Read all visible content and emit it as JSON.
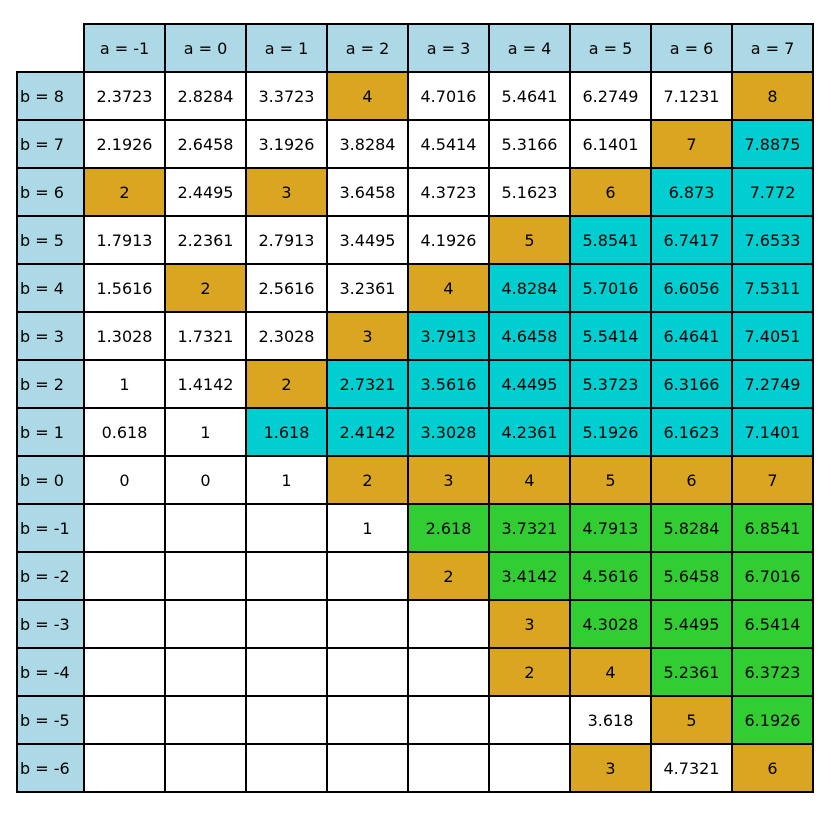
{
  "chart_data": {
    "type": "table",
    "columns": [
      "a = -1",
      "a = 0",
      "a = 1",
      "a = 2",
      "a = 3",
      "a = 4",
      "a = 5",
      "a = 6",
      "a = 7"
    ],
    "rows": [
      {
        "label": "b = 8",
        "cells": [
          "2.3723",
          "2.8284",
          "3.3723",
          "4",
          "4.7016",
          "5.4641",
          "6.2749",
          "7.1231",
          "8"
        ],
        "fills": [
          "w",
          "w",
          "w",
          "o",
          "w",
          "w",
          "w",
          "w",
          "o"
        ]
      },
      {
        "label": "b = 7",
        "cells": [
          "2.1926",
          "2.6458",
          "3.1926",
          "3.8284",
          "4.5414",
          "5.3166",
          "6.1401",
          "7",
          "7.8875"
        ],
        "fills": [
          "w",
          "w",
          "w",
          "w",
          "w",
          "w",
          "w",
          "o",
          "c"
        ]
      },
      {
        "label": "b = 6",
        "cells": [
          "2",
          "2.4495",
          "3",
          "3.6458",
          "4.3723",
          "5.1623",
          "6",
          "6.873",
          "7.772"
        ],
        "fills": [
          "o",
          "w",
          "o",
          "w",
          "w",
          "w",
          "o",
          "c",
          "c"
        ]
      },
      {
        "label": "b = 5",
        "cells": [
          "1.7913",
          "2.2361",
          "2.7913",
          "3.4495",
          "4.1926",
          "5",
          "5.8541",
          "6.7417",
          "7.6533"
        ],
        "fills": [
          "w",
          "w",
          "w",
          "w",
          "w",
          "o",
          "c",
          "c",
          "c"
        ]
      },
      {
        "label": "b = 4",
        "cells": [
          "1.5616",
          "2",
          "2.5616",
          "3.2361",
          "4",
          "4.8284",
          "5.7016",
          "6.6056",
          "7.5311"
        ],
        "fills": [
          "w",
          "o",
          "w",
          "w",
          "o",
          "c",
          "c",
          "c",
          "c"
        ]
      },
      {
        "label": "b = 3",
        "cells": [
          "1.3028",
          "1.7321",
          "2.3028",
          "3",
          "3.7913",
          "4.6458",
          "5.5414",
          "6.4641",
          "7.4051"
        ],
        "fills": [
          "w",
          "w",
          "w",
          "o",
          "c",
          "c",
          "c",
          "c",
          "c"
        ]
      },
      {
        "label": "b = 2",
        "cells": [
          "1",
          "1.4142",
          "2",
          "2.7321",
          "3.5616",
          "4.4495",
          "5.3723",
          "6.3166",
          "7.2749"
        ],
        "fills": [
          "w",
          "w",
          "o",
          "c",
          "c",
          "c",
          "c",
          "c",
          "c"
        ]
      },
      {
        "label": "b = 1",
        "cells": [
          "0.618",
          "1",
          "1.618",
          "2.4142",
          "3.3028",
          "4.2361",
          "5.1926",
          "6.1623",
          "7.1401"
        ],
        "fills": [
          "w",
          "w",
          "c",
          "c",
          "c",
          "c",
          "c",
          "c",
          "c"
        ]
      },
      {
        "label": "b = 0",
        "cells": [
          "0",
          "0",
          "1",
          "2",
          "3",
          "4",
          "5",
          "6",
          "7"
        ],
        "fills": [
          "w",
          "w",
          "w",
          "o",
          "o",
          "o",
          "o",
          "o",
          "o"
        ]
      },
      {
        "label": "b = -1",
        "cells": [
          "",
          "",
          "",
          "1",
          "2.618",
          "3.7321",
          "4.7913",
          "5.8284",
          "6.8541"
        ],
        "fills": [
          "w",
          "w",
          "w",
          "w",
          "g",
          "g",
          "g",
          "g",
          "g"
        ]
      },
      {
        "label": "b = -2",
        "cells": [
          "",
          "",
          "",
          "",
          "2",
          "3.4142",
          "4.5616",
          "5.6458",
          "6.7016"
        ],
        "fills": [
          "w",
          "w",
          "w",
          "w",
          "o",
          "g",
          "g",
          "g",
          "g"
        ]
      },
      {
        "label": "b = -3",
        "cells": [
          "",
          "",
          "",
          "",
          "",
          "3",
          "4.3028",
          "5.4495",
          "6.5414"
        ],
        "fills": [
          "w",
          "w",
          "w",
          "w",
          "w",
          "o",
          "g",
          "g",
          "g"
        ]
      },
      {
        "label": "b = -4",
        "cells": [
          "",
          "",
          "",
          "",
          "",
          "2",
          "4",
          "5.2361",
          "6.3723"
        ],
        "fills": [
          "w",
          "w",
          "w",
          "w",
          "w",
          "o",
          "o",
          "g",
          "g"
        ]
      },
      {
        "label": "b = -5",
        "cells": [
          "",
          "",
          "",
          "",
          "",
          "",
          "3.618",
          "5",
          "6.1926"
        ],
        "fills": [
          "w",
          "w",
          "w",
          "w",
          "w",
          "w",
          "w",
          "o",
          "g"
        ]
      },
      {
        "label": "b = -6",
        "cells": [
          "",
          "",
          "",
          "",
          "",
          "",
          "3",
          "4.7321",
          "6"
        ],
        "fills": [
          "w",
          "w",
          "w",
          "w",
          "w",
          "w",
          "o",
          "w",
          "o"
        ]
      }
    ],
    "fill_colors": {
      "w": "#ffffff",
      "o": "#daa520",
      "c": "#00ced1",
      "g": "#32cd32"
    },
    "header_color": "#add8e6"
  }
}
